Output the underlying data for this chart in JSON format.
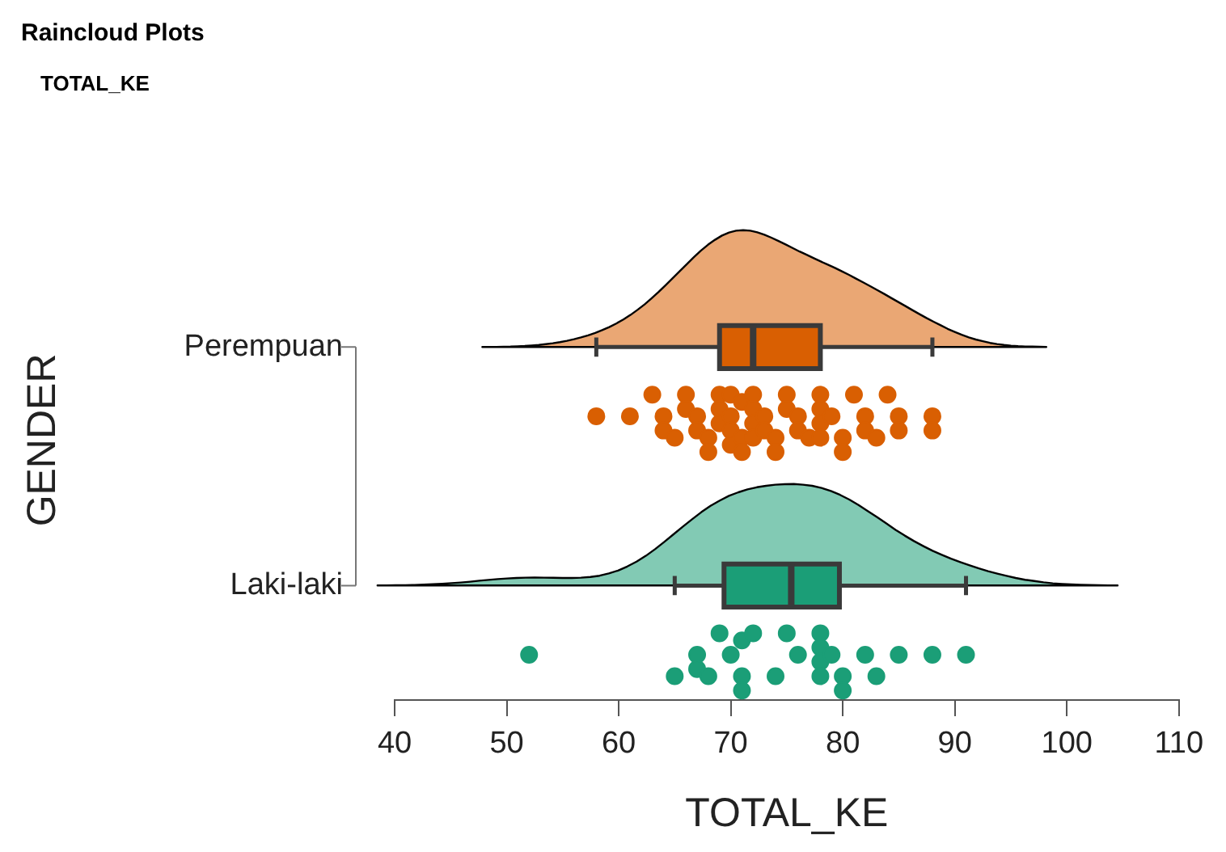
{
  "chart_data": {
    "type": "box",
    "title": "Raincloud Plots",
    "subtitle": "TOTAL_KE",
    "xlabel": "TOTAL_KE",
    "ylabel": "GENDER",
    "orientation": "horizontal",
    "categories": [
      "Perempuan",
      "Laki-laki"
    ],
    "colors": [
      "#d95f02",
      "#1b9e77"
    ],
    "boxes": [
      {
        "low": 58,
        "q1": 69,
        "median": 72,
        "q3": 78,
        "high": 88
      },
      {
        "low": 65,
        "q1": 69.4,
        "median": 75.4,
        "q3": 79.7,
        "high": 91
      }
    ],
    "xlim": [
      40,
      110
    ],
    "xticks": [
      40,
      50,
      60,
      70,
      80,
      90,
      100,
      110
    ],
    "grid": false,
    "legend": false,
    "marker": "circle",
    "series": [
      {
        "type": "scatter",
        "color": "#d95f02",
        "x": [
          "Perempuan",
          "Perempuan",
          "Perempuan",
          "Perempuan",
          "Perempuan",
          "Perempuan",
          "Perempuan",
          "Perempuan",
          "Perempuan",
          "Perempuan",
          "Perempuan",
          "Perempuan",
          "Perempuan",
          "Perempuan",
          "Perempuan",
          "Perempuan",
          "Perempuan",
          "Perempuan",
          "Perempuan",
          "Perempuan",
          "Perempuan",
          "Perempuan",
          "Perempuan",
          "Perempuan",
          "Perempuan",
          "Perempuan",
          "Perempuan",
          "Perempuan",
          "Perempuan",
          "Perempuan",
          "Perempuan",
          "Perempuan",
          "Perempuan",
          "Perempuan",
          "Perempuan",
          "Perempuan",
          "Perempuan",
          "Perempuan",
          "Perempuan",
          "Perempuan",
          "Perempuan",
          "Perempuan",
          "Perempuan",
          "Perempuan",
          "Perempuan",
          "Perempuan",
          "Perempuan",
          "Perempuan",
          "Perempuan",
          "Perempuan",
          "Perempuan"
        ],
        "values": [
          58,
          61,
          63,
          64,
          64,
          65,
          66,
          66,
          67,
          67,
          68,
          68,
          69,
          69,
          69,
          70,
          70,
          70,
          70,
          71,
          71,
          71,
          72,
          72,
          72,
          72,
          73,
          73,
          74,
          74,
          75,
          75,
          76,
          76,
          77,
          78,
          78,
          78,
          78,
          79,
          80,
          80,
          81,
          82,
          82,
          83,
          84,
          85,
          85,
          88,
          88
        ]
      },
      {
        "type": "scatter",
        "color": "#1b9e77",
        "x": [
          "Laki-laki",
          "Laki-laki",
          "Laki-laki",
          "Laki-laki",
          "Laki-laki",
          "Laki-laki",
          "Laki-laki",
          "Laki-laki",
          "Laki-laki",
          "Laki-laki",
          "Laki-laki",
          "Laki-laki",
          "Laki-laki",
          "Laki-laki",
          "Laki-laki",
          "Laki-laki",
          "Laki-laki",
          "Laki-laki",
          "Laki-laki",
          "Laki-laki",
          "Laki-laki",
          "Laki-laki",
          "Laki-laki",
          "Laki-laki",
          "Laki-laki",
          "Laki-laki"
        ],
        "values": [
          52,
          65,
          67,
          67,
          68,
          69,
          70,
          71,
          71,
          71,
          72,
          74,
          75,
          76,
          78,
          78,
          78,
          78,
          79,
          80,
          80,
          82,
          83,
          85,
          88,
          91
        ]
      }
    ]
  }
}
